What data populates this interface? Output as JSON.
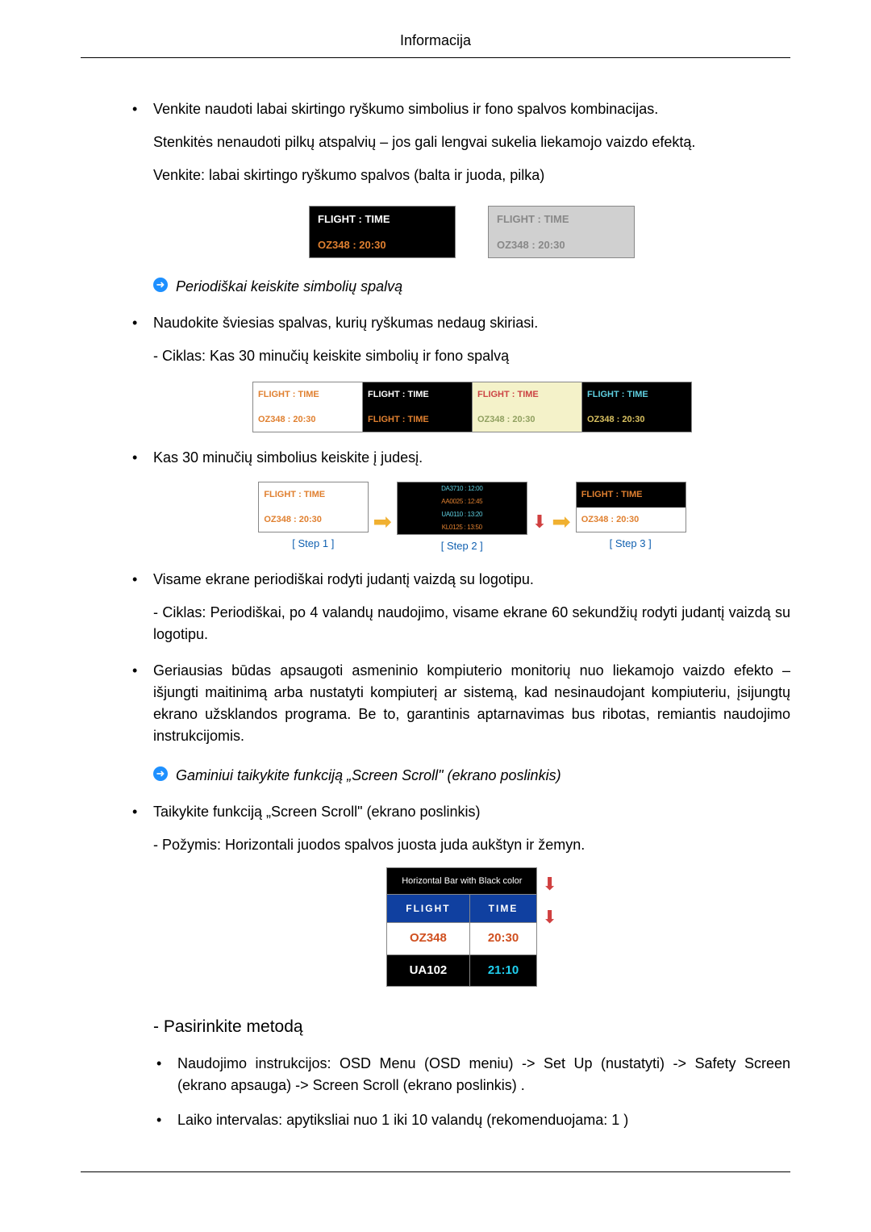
{
  "header": {
    "title": "Informacija"
  },
  "p1": "Venkite naudoti labai skirtingo ryškumo simbolius ir fono spalvos kombinacijas.",
  "p1b": "Stenkitės nenaudoti pilkų atspalvių – jos gali lengvai sukelia liekamojo vaizdo efektą.",
  "p1c": "Venkite: labai skirtingo ryškumo spalvos (balta ir juoda, pilka)",
  "fig1": {
    "left": {
      "top": "FLIGHT : TIME",
      "bot": "OZ348   : 20:30",
      "top_bg": "#000000",
      "top_fg": "#ffffff",
      "bot_bg": "#000000",
      "bot_fg": "#e08030"
    },
    "right": {
      "top": "FLIGHT : TIME",
      "bot": "OZ348   : 20:30",
      "top_bg": "#d0d0d0",
      "top_fg": "#808080",
      "bot_bg": "#d0d0d0",
      "bot_fg": "#808080"
    }
  },
  "c1": "Periodiškai keiskite simbolių spalvą",
  "p2": "Naudokite šviesias spalvas, kurių ryškumas nedaug skiriasi.",
  "p2a": "- Ciklas: Kas 30 minučių keiskite simbolių ir fono spalvą",
  "fig2": {
    "b1": {
      "top": "FLIGHT : TIME",
      "bot": "OZ348   : 20:30"
    },
    "b2": {
      "top": "FLIGHT : TIME",
      "bot": "FLIGHT : TIME"
    },
    "b3": {
      "top": "FLIGHT  :  TIME",
      "bot": "OZ348   : 20:30"
    },
    "b4": {
      "top": "FLIGHT : TIME",
      "bot": "OZ348   : 20:30"
    }
  },
  "p3": "Kas 30 minučių simbolius keiskite į judesį.",
  "steps": {
    "s1": {
      "top": "FLIGHT : TIME",
      "bot": "OZ348   : 20:30",
      "label": "[ Step 1 ]"
    },
    "s2": {
      "l1": "DA3710 : 12:00",
      "l2": "AA0025 : 12:45",
      "l3": "UA0110 : 13:20",
      "l4": "KL0125 : 13:50",
      "label": "[ Step 2 ]"
    },
    "s3": {
      "top": "FLIGHT : TIME",
      "bot": "OZ348   : 20:30",
      "label": "[ Step 3 ]"
    }
  },
  "p4": "Visame ekrane periodiškai rodyti judantį vaizdą su logotipu.",
  "p4a": "- Ciklas: Periodiškai, po 4 valandų naudojimo, visame ekrane 60 sekundžių rodyti judantį vaizdą su logotipu.",
  "p5": "Geriausias būdas apsaugoti asmeninio kompiuterio monitorių nuo liekamojo vaizdo efekto – išjungti maitinimą arba nustatyti kompiuterį ar sistemą, kad nesinaudojant kompiuteriu, įsijungtų ekrano užsklandos programa. Be to, garantinis aptarnavimas bus ribotas, remiantis naudojimo instrukcijomis.",
  "c2": "Gaminiui taikykite funkciją „Screen Scroll\" (ekrano poslinkis)",
  "p6": "Taikykite funkciją „Screen Scroll\" (ekrano poslinkis)",
  "p6a": "- Požymis: Horizontali juodos spalvos juosta juda aukštyn ir žemyn.",
  "scroll": {
    "head": "Horizontal Bar with Black color",
    "c1": "FLIGHT",
    "c2": "TIME",
    "r1a": "OZ348",
    "r1b": "20:30",
    "r2a": "UA102",
    "r2b": "21:10"
  },
  "method": "- Pasirinkite metodą",
  "m1": "Naudojimo instrukcijos: OSD Menu (OSD meniu) -> Set Up (nustatyti) -> Safety Screen (ekrano apsauga) -> Screen Scroll (ekrano poslinkis) .",
  "m2": "Laiko intervalas: apytiksliai nuo 1 iki 10 valandų (rekomenduojama: 1 )"
}
